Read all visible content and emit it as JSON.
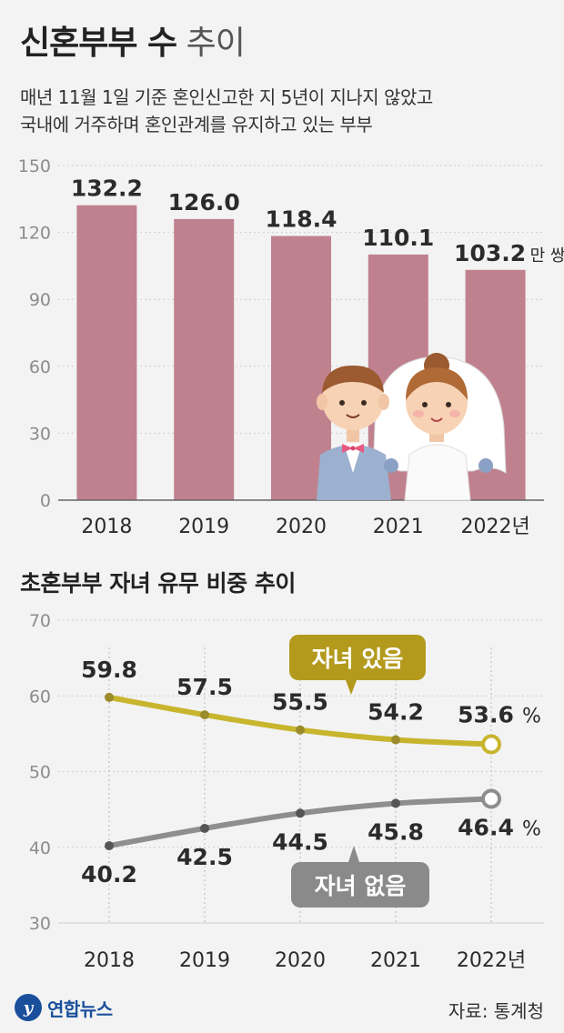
{
  "header": {
    "title_bold": "신혼부부 수",
    "title_light": "추이",
    "subtitle_lines": [
      "매년 11월 1일 기준 혼인신고한 지 5년이 지나지 않았고",
      "국내에 거주하며 혼인관계를 유지하고 있는 부부"
    ]
  },
  "chart_data": [
    {
      "type": "bar",
      "categories": [
        "2018",
        "2019",
        "2020",
        "2021",
        "2022"
      ],
      "category_labels": [
        "2018",
        "2019",
        "2020",
        "2021",
        "2022년"
      ],
      "values": [
        132.2,
        126.0,
        118.4,
        110.1,
        103.2
      ],
      "value_labels": [
        "132.2",
        "126.0",
        "118.4",
        "110.1",
        "103.2"
      ],
      "last_value_unit": "만 쌍",
      "yticks": [
        "0",
        "30",
        "60",
        "90",
        "120",
        "150"
      ],
      "ylim": [
        0,
        150
      ],
      "grid": true,
      "color": "#c0818f"
    },
    {
      "type": "line",
      "title": "초혼부부 자녀 유무 비중 추이",
      "categories": [
        "2018",
        "2019",
        "2020",
        "2021",
        "2022"
      ],
      "category_labels": [
        "2018",
        "2019",
        "2020",
        "2021",
        "2022년"
      ],
      "yticks": [
        "30",
        "40",
        "50",
        "60",
        "70"
      ],
      "ylim": [
        30,
        70
      ],
      "grid": true,
      "series": [
        {
          "name": "자녀 있음",
          "values": [
            59.8,
            57.5,
            55.5,
            54.2,
            53.6
          ],
          "value_labels": [
            "59.8",
            "57.5",
            "55.5",
            "54.2",
            "53.6"
          ],
          "color": "#c8b52e",
          "label_bg": "#b39a1d"
        },
        {
          "name": "자녀 없음",
          "values": [
            40.2,
            42.5,
            44.5,
            45.8,
            46.4
          ],
          "value_labels": [
            "40.2",
            "42.5",
            "44.5",
            "45.8",
            "46.4"
          ],
          "color": "#8e8e8e",
          "label_bg": "#8a8a8a"
        }
      ],
      "last_value_unit": "%"
    }
  ],
  "footer": {
    "brand_logo": "y",
    "brand_name": "연합뉴스",
    "source": "자료: 통계청"
  }
}
